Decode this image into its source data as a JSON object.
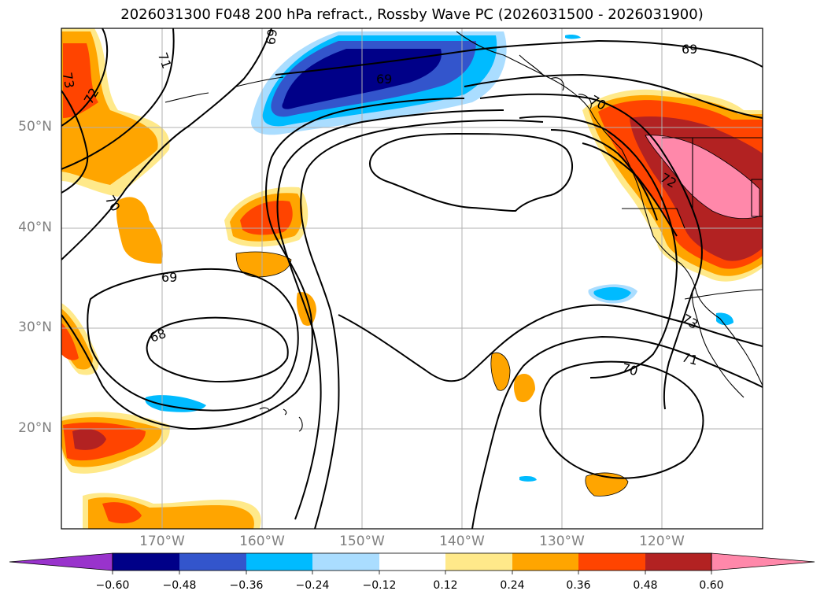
{
  "title": "2026031300 F048 200 hPa refract., Rossby Wave PC (2026031500 - 2026031900)",
  "latitude_labels": [
    "50°N",
    "40°N",
    "30°N",
    "20°N"
  ],
  "longitude_labels": [
    "170°W",
    "160°W",
    "150°W",
    "140°W",
    "130°W",
    "120°W"
  ],
  "colorbar": {
    "ticks": [
      "−0.60",
      "−0.48",
      "−0.36",
      "−0.24",
      "−0.12",
      "0.12",
      "0.24",
      "0.36",
      "0.48",
      "0.60"
    ],
    "colors": [
      "#9933cc",
      "#000088",
      "#3355cc",
      "#00bbff",
      "#aaddff",
      "#ffffff",
      "#ffe98a",
      "#ffa500",
      "#ff4400",
      "#b22222",
      "#ff88aa"
    ]
  },
  "contour_labels": [
    "69",
    "71",
    "73",
    "72",
    "70",
    "69",
    "70",
    "72",
    "69",
    "68",
    "73",
    "71",
    "70"
  ]
}
